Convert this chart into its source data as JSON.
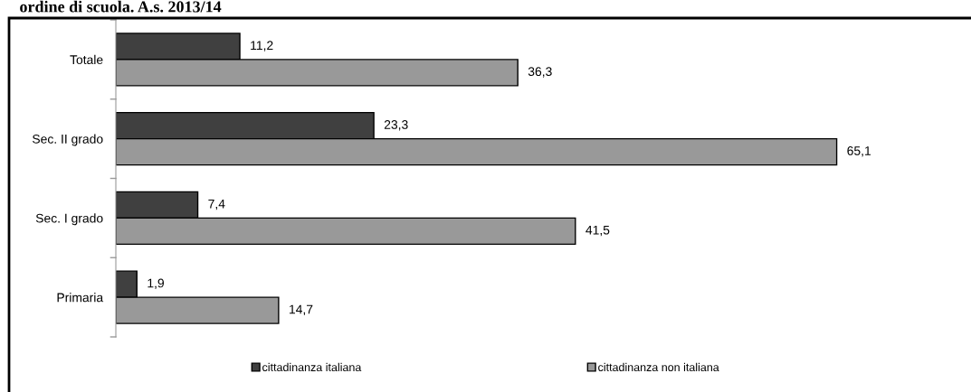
{
  "chart_data": {
    "type": "bar",
    "orientation": "horizontal",
    "title": "ordine di scuola. A.s. 2013/14",
    "categories": [
      "Totale",
      "Sec. II grado",
      "Sec. I grado",
      "Primaria"
    ],
    "series": [
      {
        "name": "cittadinanza italiana",
        "color": "#404040",
        "values": [
          11.2,
          23.3,
          7.4,
          1.9
        ],
        "value_labels": [
          "11,2",
          "23,3",
          "7,4",
          "1,9"
        ]
      },
      {
        "name": "cittadinanza non italiana",
        "color": "#999999",
        "values": [
          36.3,
          65.1,
          41.5,
          14.7
        ],
        "value_labels": [
          "36,3",
          "65,1",
          "41,5",
          "14,7"
        ]
      }
    ],
    "legend": "bottom",
    "grid": false
  }
}
